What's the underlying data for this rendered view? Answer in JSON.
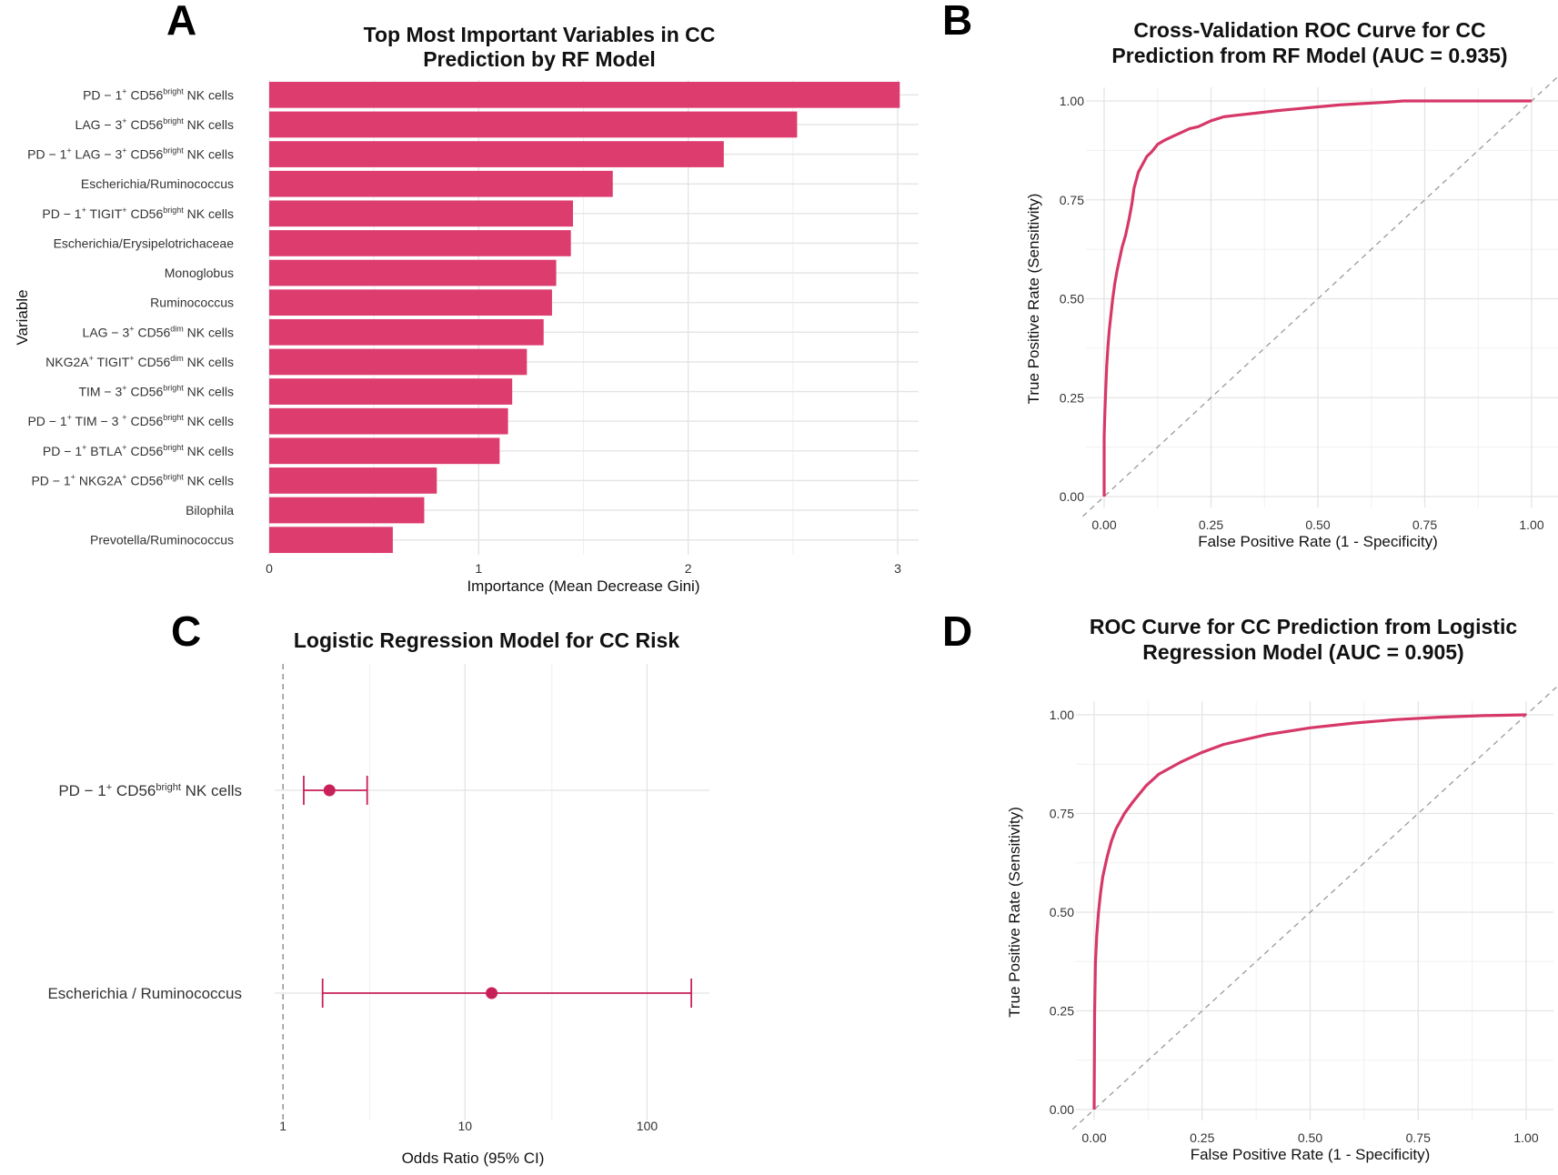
{
  "panel_letters": [
    "A",
    "B",
    "C",
    "D"
  ],
  "chart_data": [
    {
      "panel": "A",
      "type": "bar",
      "orientation": "horizontal",
      "title_lines": [
        "Top Most Important Variables in CC",
        "Prediction by RF Model"
      ],
      "xlabel": "Importance (Mean Decrease Gini)",
      "ylabel": "Variable",
      "xlim": [
        0,
        3.1
      ],
      "xticks": [
        0,
        1,
        2,
        3
      ],
      "grid": true,
      "bar_color": "#DD3C6E",
      "categories": [
        {
          "pre": "PD − 1",
          "sup1": "+",
          "mid": " CD56",
          "sup2": "bright",
          "post": " NK cells"
        },
        {
          "pre": "LAG − 3",
          "sup1": "+",
          "mid": " CD56",
          "sup2": "bright",
          "post": " NK cells"
        },
        {
          "pre": "PD − 1",
          "sup1": "+",
          "mid": " LAG − 3",
          "sup2": "+",
          "post": " CD56",
          "sup3": "bright",
          "post2": " NK cells"
        },
        {
          "pre": "Escherichia/Ruminococcus"
        },
        {
          "pre": "PD − 1",
          "sup1": "+",
          "mid": " TIGIT",
          "sup2": "+",
          "post": " CD56",
          "sup3": "bright",
          "post2": " NK cells"
        },
        {
          "pre": "Escherichia/Erysipelotrichaceae"
        },
        {
          "pre": "Monoglobus"
        },
        {
          "pre": "Ruminococcus"
        },
        {
          "pre": "LAG − 3",
          "sup1": "+",
          "mid": " CD56",
          "sup2": "dim",
          "post": " NK cells"
        },
        {
          "pre": "NKG2A",
          "sup1": "+",
          "mid": " TIGIT",
          "sup2": "+",
          "post": " CD56",
          "sup3": "dim",
          "post2": " NK cells"
        },
        {
          "pre": "TIM − 3",
          "sup1": "+",
          "mid": " CD56",
          "sup2": "bright",
          "post": " NK cells"
        },
        {
          "pre": "PD − 1",
          "sup1": "+",
          "mid": " TIM − 3 ",
          "sup2": "+",
          "post": " CD56",
          "sup3": "bright",
          "post2": " NK cells"
        },
        {
          "pre": "PD − 1",
          "sup1": "+",
          "mid": " BTLA",
          "sup2": "+",
          "post": " CD56",
          "sup3": "bright",
          "post2": " NK cells"
        },
        {
          "pre": "PD − 1",
          "sup1": "+",
          "mid": " NKG2A",
          "sup2": "+",
          "post": " CD56",
          "sup3": "bright",
          "post2": " NK cells"
        },
        {
          "pre": "Bilophila"
        },
        {
          "pre": "Prevotella/Ruminococcus"
        }
      ],
      "values": [
        3.01,
        2.52,
        2.17,
        1.64,
        1.45,
        1.44,
        1.37,
        1.35,
        1.31,
        1.23,
        1.16,
        1.14,
        1.1,
        0.8,
        0.74,
        0.59
      ]
    },
    {
      "panel": "B",
      "type": "line",
      "title_lines": [
        "Cross-Validation ROC Curve for CC",
        "Prediction from RF Model (AUC = 0.935)"
      ],
      "xlabel": "False Positive Rate (1 - Specificity)",
      "ylabel": "True Positive Rate (Sensitivity)",
      "xlim": [
        0,
        1
      ],
      "ylim": [
        0,
        1
      ],
      "ticks": [
        "0.00",
        "0.25",
        "0.50",
        "0.75",
        "1.00"
      ],
      "grid": true,
      "diagonal_reference": true,
      "line_color": "#D63868",
      "series": [
        {
          "x": [
            0,
            0,
            0.002,
            0.004,
            0.006,
            0.009,
            0.012,
            0.016,
            0.02,
            0.025,
            0.03,
            0.036,
            0.042,
            0.05,
            0.058,
            0.065,
            0.07,
            0.075,
            0.08,
            0.09,
            0.1,
            0.11,
            0.125,
            0.14,
            0.16,
            0.18,
            0.2,
            0.22,
            0.25,
            0.28,
            0.32,
            0.36,
            0.4,
            0.45,
            0.5,
            0.55,
            0.6,
            0.65,
            0.7,
            0.8,
            0.9,
            1
          ],
          "y": [
            0,
            0.15,
            0.22,
            0.28,
            0.33,
            0.38,
            0.42,
            0.46,
            0.5,
            0.54,
            0.57,
            0.6,
            0.63,
            0.66,
            0.7,
            0.74,
            0.78,
            0.8,
            0.82,
            0.84,
            0.86,
            0.87,
            0.89,
            0.9,
            0.91,
            0.92,
            0.93,
            0.935,
            0.95,
            0.96,
            0.965,
            0.97,
            0.975,
            0.98,
            0.985,
            0.99,
            0.993,
            0.996,
            1,
            1,
            1,
            1
          ]
        }
      ]
    },
    {
      "panel": "C",
      "type": "scatter",
      "subtype": "forest",
      "title": "Logistic Regression Model for CC Risk",
      "xlabel": "Odds Ratio (95% CI)",
      "xscale": "log",
      "xlim": [
        0.9,
        220
      ],
      "xticks": [
        1,
        10,
        100
      ],
      "reference_line": 1,
      "grid": true,
      "point_color": "#C8215A",
      "rows": [
        {
          "label_pre": "PD − 1",
          "label_sup1": "+",
          "label_mid": " CD56",
          "label_sup2": "bright",
          "label_post": " NK cells",
          "or": 1.8,
          "ci_low": 1.3,
          "ci_high": 2.9
        },
        {
          "label_pre": "Escherichia / Ruminococcus",
          "or": 14,
          "ci_low": 1.65,
          "ci_high": 175
        }
      ]
    },
    {
      "panel": "D",
      "type": "line",
      "title_lines": [
        "ROC Curve for CC Prediction from Logistic",
        "Regression Model (AUC = 0.905)"
      ],
      "xlabel": "False Positive Rate (1 - Specificity)",
      "ylabel": "True Positive Rate (Sensitivity)",
      "xlim": [
        0,
        1
      ],
      "ylim": [
        0,
        1
      ],
      "ticks": [
        "0.00",
        "0.25",
        "0.50",
        "0.75",
        "1.00"
      ],
      "grid": true,
      "diagonal_reference": true,
      "line_color": "#D63868",
      "series": [
        {
          "x": [
            0,
            0.001,
            0.003,
            0.006,
            0.01,
            0.015,
            0.02,
            0.03,
            0.04,
            0.05,
            0.07,
            0.09,
            0.12,
            0.15,
            0.2,
            0.25,
            0.3,
            0.4,
            0.5,
            0.6,
            0.7,
            0.8,
            0.9,
            1
          ],
          "y": [
            0,
            0.24,
            0.37,
            0.44,
            0.5,
            0.55,
            0.59,
            0.64,
            0.68,
            0.71,
            0.75,
            0.78,
            0.82,
            0.85,
            0.88,
            0.905,
            0.925,
            0.95,
            0.967,
            0.979,
            0.988,
            0.994,
            0.998,
            1
          ]
        }
      ]
    }
  ]
}
